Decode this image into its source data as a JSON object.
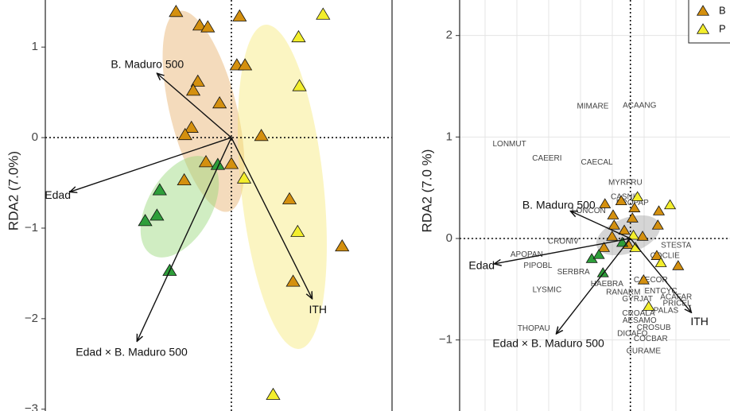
{
  "chart_data": [
    {
      "type": "biplot",
      "ylabel": "RDA2 (7.0%)",
      "grid": false,
      "xlim": [
        -2.05,
        1.77
      ],
      "ylim": [
        -3.02,
        1.52
      ],
      "yticks": [
        {
          "value": -3,
          "label": "−3"
        },
        {
          "value": -2,
          "label": "−2"
        },
        {
          "value": -1,
          "label": "−1"
        },
        0,
        1
      ],
      "series": [
        {
          "color": "#d4900f",
          "x": [
            -0.61,
            0.09,
            -0.35,
            -0.26,
            0.06,
            0.15,
            -0.37,
            -0.42,
            -0.13,
            -0.44,
            -0.51,
            -0.28,
            0.0,
            -0.52,
            0.33,
            0.64,
            0.68,
            1.22
          ],
          "y": [
            1.39,
            1.34,
            1.24,
            1.22,
            0.8,
            0.8,
            0.62,
            0.52,
            0.38,
            0.11,
            0.03,
            -0.27,
            -0.29,
            -0.47,
            0.02,
            -0.68,
            -1.59,
            -1.2
          ]
        },
        {
          "color": "#f3ee2c",
          "x": [
            1.01,
            0.74,
            0.75,
            0.14,
            0.73,
            0.46
          ],
          "y": [
            1.36,
            1.11,
            0.57,
            -0.45,
            -1.04,
            -2.84
          ]
        },
        {
          "color": "#2e9e3a",
          "x": [
            -0.79,
            -0.82,
            -0.95,
            -0.68,
            -0.15
          ],
          "y": [
            -0.58,
            -0.86,
            -0.92,
            -1.47,
            -0.3
          ]
        }
      ],
      "arrows": [
        {
          "label": "B. Maduro 500",
          "x": -0.82,
          "y": 0.71
        },
        {
          "label": "Edad",
          "x": -1.78,
          "y": -0.6
        },
        {
          "label": "Edad × B. Maduro 500",
          "x": -1.04,
          "y": -2.25
        },
        {
          "label": "ITH",
          "x": 0.89,
          "y": -1.78
        }
      ]
    },
    {
      "type": "biplot",
      "ylabel": "RDA2 (7.0 %)",
      "grid": true,
      "legend": "top-right",
      "xlim": [
        -1.68,
        0.98
      ],
      "ylim": [
        -1.7,
        2.35
      ],
      "yticks": [
        {
          "value": -1,
          "label": "−1"
        },
        0,
        1,
        2
      ],
      "series": [
        {
          "name": "B",
          "color": "#d4900f",
          "x": [
            -0.25,
            -0.09,
            0.04,
            -0.17,
            0.02,
            0.28,
            0.27,
            -0.16,
            -0.18,
            -0.06,
            0.12,
            -0.02,
            -0.26,
            0.26,
            0.47,
            0.13
          ],
          "y": [
            0.34,
            0.37,
            0.3,
            0.23,
            0.2,
            0.27,
            0.13,
            0.13,
            0.02,
            0.08,
            0.02,
            -0.06,
            -0.09,
            -0.17,
            -0.27,
            -0.41
          ]
        },
        {
          "name": "P",
          "color": "#f3ee2c",
          "x": [
            0.07,
            0.39,
            0.03,
            0.05,
            0.3,
            0.18
          ],
          "y": [
            0.41,
            0.33,
            0.03,
            -0.09,
            -0.24,
            -0.67
          ]
        },
        {
          "color": "#2e9e3a",
          "x": [
            -0.38,
            -0.31,
            -0.27,
            -0.08
          ],
          "y": [
            -0.2,
            -0.16,
            -0.34,
            -0.04
          ]
        }
      ],
      "arrows": [
        {
          "label": "B. Maduro 500",
          "x": -0.59,
          "y": 0.27
        },
        {
          "label": "Edad",
          "x": -1.34,
          "y": -0.25
        },
        {
          "label": "Edad × B. Maduro 500",
          "x": -0.73,
          "y": -0.94
        },
        {
          "label": "ITH",
          "x": 0.6,
          "y": -0.73
        }
      ],
      "labels": [
        {
          "text": "MIMARE",
          "x": -0.37,
          "y": 1.3
        },
        {
          "text": "ACAANG",
          "x": 0.09,
          "y": 1.31
        },
        {
          "text": "LONMUT",
          "x": -1.19,
          "y": 0.93
        },
        {
          "text": "CAEERI",
          "x": -0.82,
          "y": 0.79
        },
        {
          "text": "CAECAL",
          "x": -0.33,
          "y": 0.75
        },
        {
          "text": "MYRFRU",
          "x": -0.05,
          "y": 0.55
        },
        {
          "text": "CASNIT",
          "x": -0.05,
          "y": 0.41
        },
        {
          "text": "BROPAP",
          "x": 0.02,
          "y": 0.35
        },
        {
          "text": "LONCON",
          "x": -0.41,
          "y": 0.27
        },
        {
          "text": "CRONIV",
          "x": -0.66,
          "y": -0.03
        },
        {
          "text": "APOPAN",
          "x": -1.02,
          "y": -0.16
        },
        {
          "text": "PIPOBL",
          "x": -0.91,
          "y": -0.27
        },
        {
          "text": "SERBRA",
          "x": -0.56,
          "y": -0.33
        },
        {
          "text": "LYSMIC",
          "x": -0.82,
          "y": -0.51
        },
        {
          "text": "HAEBRA",
          "x": -0.23,
          "y": -0.45
        },
        {
          "text": "RANARM",
          "x": -0.07,
          "y": -0.53
        },
        {
          "text": "GYRJAT",
          "x": 0.07,
          "y": -0.6
        },
        {
          "text": "STESTA",
          "x": 0.45,
          "y": -0.07
        },
        {
          "text": "COCLIE",
          "x": 0.34,
          "y": -0.17
        },
        {
          "text": "CAECOR",
          "x": 0.2,
          "y": -0.41
        },
        {
          "text": "ENTCYC",
          "x": 0.3,
          "y": -0.52
        },
        {
          "text": "ACAFAR",
          "x": 0.45,
          "y": -0.58
        },
        {
          "text": "PRICEL",
          "x": 0.46,
          "y": -0.64
        },
        {
          "text": "PALAS",
          "x": 0.35,
          "y": -0.71
        },
        {
          "text": "CROALA",
          "x": 0.08,
          "y": -0.74
        },
        {
          "text": "AESAMO",
          "x": 0.09,
          "y": -0.81
        },
        {
          "text": "CROSUB",
          "x": 0.23,
          "y": -0.88
        },
        {
          "text": "DIOAFO",
          "x": 0.02,
          "y": -0.94
        },
        {
          "text": "COCBAR",
          "x": 0.2,
          "y": -0.99
        },
        {
          "text": "THOPAU",
          "x": -0.95,
          "y": -0.89
        },
        {
          "text": "CURAME",
          "x": 0.13,
          "y": -1.11
        }
      ]
    }
  ]
}
